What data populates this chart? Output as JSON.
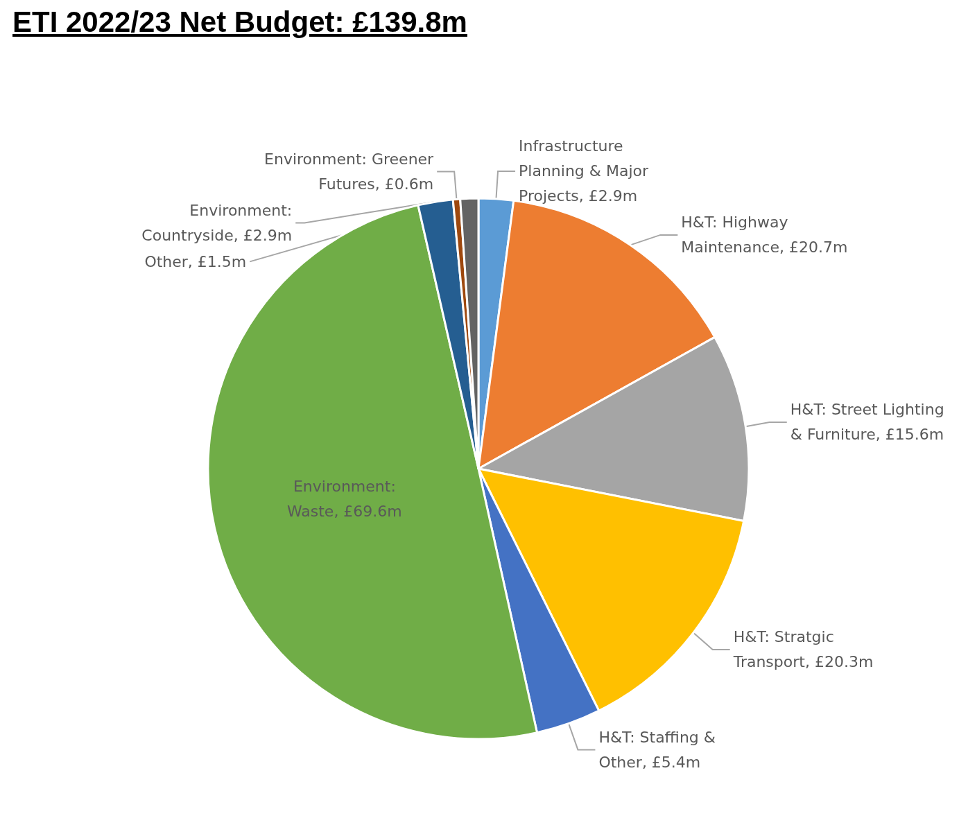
{
  "chart_data": {
    "type": "pie",
    "title": "ETI 2022/23 Net Budget: £139.8m",
    "categories": [
      "Infrastructure Planning & Major Projects",
      "H&T: Highway Maintenance",
      "H&T: Street Lighting & Furniture",
      "H&T: Stratgic Transport",
      "H&T: Staffing & Other",
      "Environment: Waste",
      "Environment: Countryside",
      "Environment: Greener Futures",
      "Other"
    ],
    "values": [
      2.9,
      20.7,
      15.6,
      20.3,
      5.4,
      69.6,
      2.9,
      0.6,
      1.5
    ],
    "value_labels": [
      "£2.9m",
      "£20.7m",
      "£15.6m",
      "£20.3m",
      "£5.4m",
      "£69.6m",
      "£2.9m",
      "£0.6m",
      "£1.5m"
    ],
    "colors": [
      "#5b9bd5",
      "#ed7d31",
      "#a5a5a5",
      "#ffc000",
      "#4472c4",
      "#70ad47",
      "#255e91",
      "#9e480e",
      "#636363"
    ]
  }
}
